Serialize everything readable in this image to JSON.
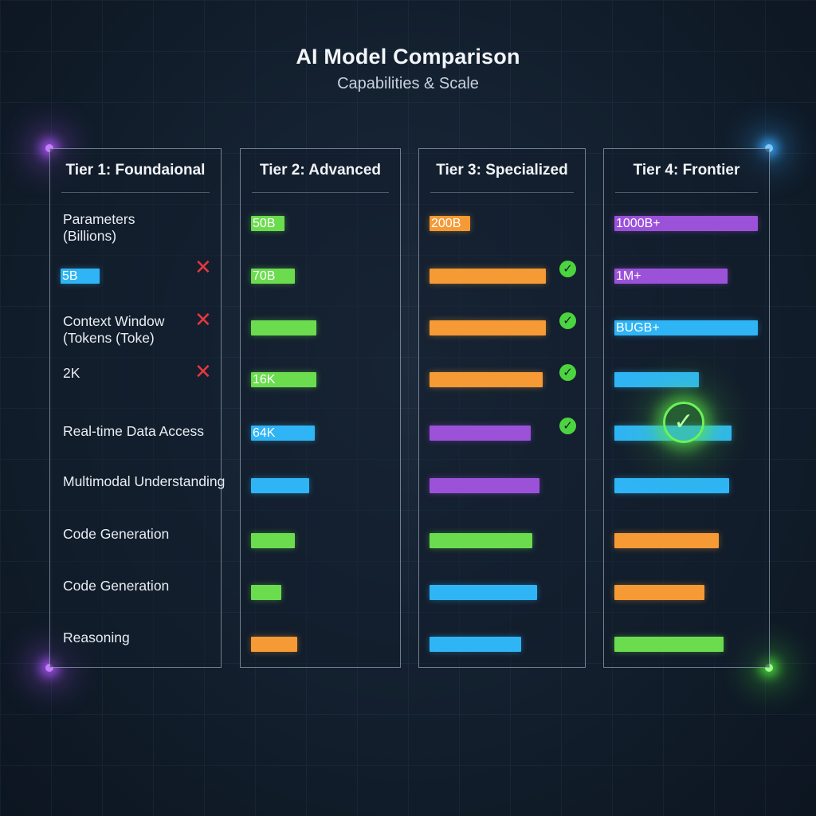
{
  "header": {
    "title": "AI Model Comparison",
    "subtitle": "Capabilities & Scale"
  },
  "colors": {
    "green": "#6bdc4e",
    "orange": "#f59a35",
    "blue": "#2fb4f5",
    "purple": "#9b52d9"
  },
  "chart_data": {
    "type": "bar",
    "title": "AI Model Comparison",
    "subtitle": "Capabilities & Scale",
    "panels": [
      {
        "name": "Tier 1: Foundaional",
        "labels": [
          "Parameters",
          "(Billions)",
          "Context Window",
          "(Tokens (Toke)",
          "2K",
          "Real-time Data Access",
          "Multimodal Understanding",
          "Code Generation",
          "Code Generation",
          "Reasoning"
        ],
        "bars": [
          {
            "label": "5B",
            "color": "blue",
            "value": 0.27
          }
        ],
        "marks": [
          "cross",
          "cross",
          "cross"
        ]
      },
      {
        "name": "Tier 2: Advanced",
        "bars": [
          {
            "label": "50B",
            "color": "green",
            "value": 0.23
          },
          {
            "label": "70B",
            "color": "green",
            "value": 0.3
          },
          {
            "label": "",
            "color": "green",
            "value": 0.45
          },
          {
            "label": "16K",
            "color": "green",
            "value": 0.45
          },
          {
            "label": "64K",
            "color": "blue",
            "value": 0.44
          },
          {
            "label": "",
            "color": "blue",
            "value": 0.4
          },
          {
            "label": "",
            "color": "green",
            "value": 0.3
          },
          {
            "label": "",
            "color": "green",
            "value": 0.21
          },
          {
            "label": "",
            "color": "orange",
            "value": 0.32
          }
        ]
      },
      {
        "name": "Tier 3: Specialized",
        "bars": [
          {
            "label": "200B",
            "color": "orange",
            "value": 0.28
          },
          {
            "label": "",
            "color": "orange",
            "value": 0.8
          },
          {
            "label": "",
            "color": "orange",
            "value": 0.8
          },
          {
            "label": "",
            "color": "orange",
            "value": 0.78
          },
          {
            "label": "",
            "color": "purple",
            "value": 0.7
          },
          {
            "label": "",
            "color": "purple",
            "value": 0.76
          },
          {
            "label": "",
            "color": "green",
            "value": 0.71
          },
          {
            "label": "",
            "color": "blue",
            "value": 0.74
          },
          {
            "label": "",
            "color": "blue",
            "value": 0.63
          }
        ],
        "marks": [
          "check",
          "check",
          "check",
          "check"
        ]
      },
      {
        "name": "Tier 4: Frontier",
        "bars": [
          {
            "label": "1000B+",
            "color": "purple",
            "value": 0.99
          },
          {
            "label": "1M+",
            "color": "purple",
            "value": 0.78
          },
          {
            "label": "BUGB+",
            "color": "blue",
            "value": 0.99
          },
          {
            "label": "",
            "color": "blue",
            "value": 0.58
          },
          {
            "label": "",
            "color": "blue",
            "value": 0.81
          },
          {
            "label": "",
            "color": "blue",
            "value": 0.79
          },
          {
            "label": "",
            "color": "orange",
            "value": 0.72
          },
          {
            "label": "",
            "color": "orange",
            "value": 0.62
          },
          {
            "label": "",
            "color": "green",
            "value": 0.75
          }
        ],
        "marks": [
          "check"
        ]
      }
    ]
  }
}
